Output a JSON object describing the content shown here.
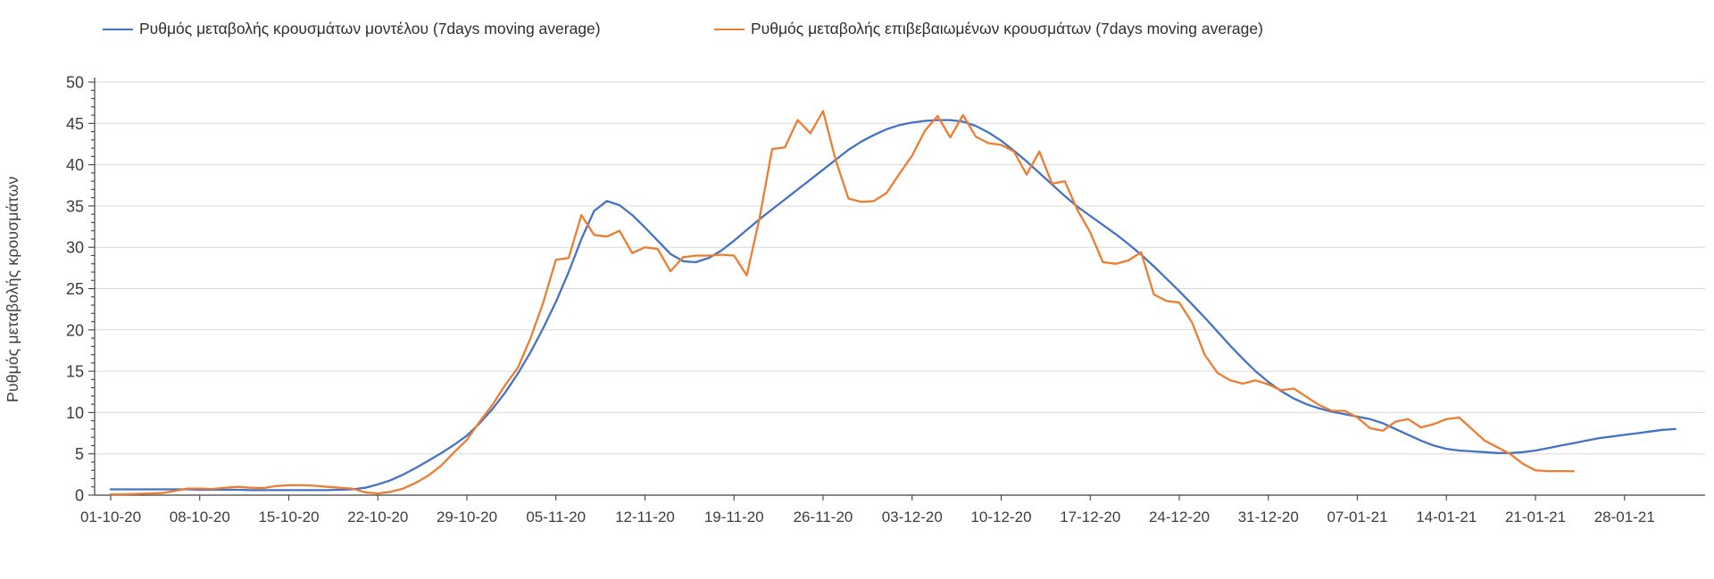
{
  "chart_data": {
    "type": "line",
    "title": "",
    "xlabel": "",
    "ylabel": "Ρυθμός μεταβολής κρουσμάτων",
    "ylim": [
      0,
      50
    ],
    "y_ticks": [
      0,
      5,
      10,
      15,
      20,
      25,
      30,
      35,
      40,
      45,
      50
    ],
    "y_minor_tick_step": 1,
    "grid": "horizontal-only",
    "legend_position": "top",
    "x_unit": "day",
    "x_start_label": "01-10-20",
    "x_tick_labels": [
      "01-10-20",
      "08-10-20",
      "15-10-20",
      "22-10-20",
      "29-10-20",
      "05-11-20",
      "12-11-20",
      "19-11-20",
      "26-11-20",
      "03-12-20",
      "10-12-20",
      "17-12-20",
      "24-12-20",
      "31-12-20",
      "07-01-21",
      "14-01-21",
      "21-01-21",
      "28-01-21"
    ],
    "x_tick_days": [
      0,
      7,
      14,
      21,
      28,
      35,
      42,
      49,
      56,
      63,
      70,
      77,
      84,
      91,
      98,
      105,
      112,
      119
    ],
    "colors": {
      "model_line": "#4472c4",
      "confirmed_line": "#ed7d31",
      "gridline": "#d9d9d9",
      "axis": "#404040",
      "tick_text": "#3d3d3d"
    },
    "series": [
      {
        "name": "Ρυθμός μεταβολής κρουσμάτων μοντέλου (7days moving average)",
        "color": "#4472c4",
        "values": [
          0.7,
          0.7,
          0.7,
          0.7,
          0.7,
          0.7,
          0.7,
          0.65,
          0.65,
          0.65,
          0.65,
          0.6,
          0.6,
          0.6,
          0.6,
          0.6,
          0.6,
          0.6,
          0.65,
          0.7,
          0.9,
          1.3,
          1.8,
          2.5,
          3.3,
          4.2,
          5.1,
          6.1,
          7.2,
          8.7,
          10.4,
          12.4,
          14.7,
          17.3,
          20.2,
          23.4,
          27.0,
          31.0,
          34.4,
          35.6,
          35.1,
          33.9,
          32.4,
          30.8,
          29.2,
          28.3,
          28.2,
          28.7,
          29.6,
          30.8,
          32.1,
          33.4,
          34.6,
          35.8,
          37.0,
          38.2,
          39.4,
          40.6,
          41.8,
          42.8,
          43.6,
          44.3,
          44.8,
          45.1,
          45.3,
          45.4,
          45.4,
          45.2,
          44.7,
          43.9,
          42.9,
          41.7,
          40.4,
          39.0,
          37.6,
          36.2,
          34.9,
          33.8,
          32.7,
          31.6,
          30.4,
          29.1,
          27.7,
          26.2,
          24.7,
          23.1,
          21.5,
          19.8,
          18.1,
          16.5,
          15.0,
          13.7,
          12.6,
          11.7,
          11.0,
          10.5,
          10.1,
          9.8,
          9.5,
          9.2,
          8.7,
          8.0,
          7.3,
          6.6,
          6.0,
          5.6,
          5.4,
          5.3,
          5.2,
          5.1,
          5.1,
          5.2,
          5.4,
          5.7,
          6.0,
          6.3,
          6.6,
          6.9,
          7.1,
          7.3,
          7.5,
          7.7,
          7.9,
          8.0
        ]
      },
      {
        "name": "Ρυθμός μεταβολής επιβεβαιωμένων κρουσμάτων (7days moving average)",
        "color": "#ed7d31",
        "values": [
          0.1,
          0.1,
          0.15,
          0.2,
          0.25,
          0.5,
          0.8,
          0.8,
          0.75,
          0.9,
          1.0,
          0.9,
          0.85,
          1.1,
          1.2,
          1.2,
          1.15,
          1.0,
          0.9,
          0.8,
          0.35,
          0.2,
          0.4,
          0.8,
          1.5,
          2.4,
          3.6,
          5.2,
          6.7,
          8.9,
          10.9,
          13.3,
          15.4,
          19.0,
          23.3,
          28.5,
          28.7,
          33.9,
          31.5,
          31.3,
          32.0,
          29.3,
          30.0,
          29.8,
          27.1,
          28.8,
          29.0,
          29.0,
          29.1,
          29.0,
          26.6,
          33.5,
          41.9,
          42.1,
          45.4,
          43.8,
          46.5,
          40.5,
          35.9,
          35.5,
          35.6,
          36.6,
          38.9,
          41.1,
          44.1,
          45.9,
          43.3,
          46.0,
          43.4,
          42.6,
          42.4,
          41.6,
          38.8,
          41.6,
          37.7,
          38.0,
          34.5,
          31.8,
          28.2,
          28.0,
          28.4,
          29.4,
          24.3,
          23.5,
          23.3,
          20.9,
          17.0,
          14.8,
          13.9,
          13.5,
          13.9,
          13.4,
          12.7,
          12.9,
          11.9,
          10.9,
          10.2,
          10.2,
          9.4,
          8.1,
          7.8,
          8.9,
          9.2,
          8.2,
          8.6,
          9.2,
          9.4,
          8.0,
          6.6,
          5.8,
          5.0,
          3.8,
          3.0,
          2.9,
          2.9,
          2.9,
          null,
          null,
          null,
          null,
          null,
          null,
          null,
          null
        ]
      }
    ]
  }
}
